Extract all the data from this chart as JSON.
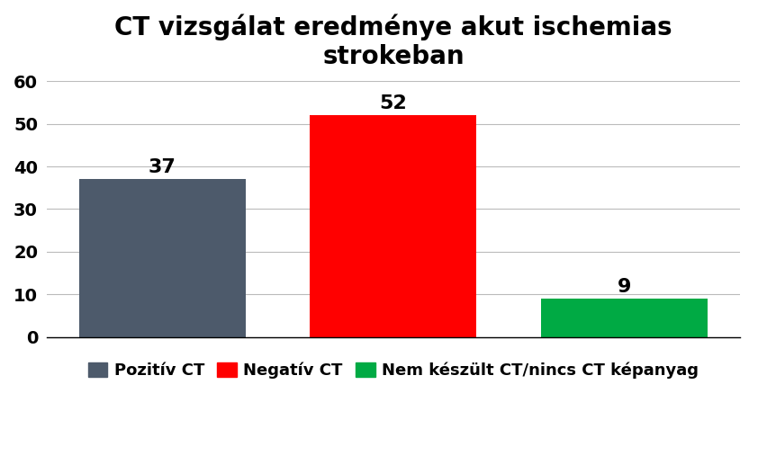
{
  "title": "CT vizsgálat eredménye akut ischemias\nstrokeban",
  "categories": [
    "Pozitív CT",
    "Negatív CT",
    "Nem készült CT/nincs CT képanyag"
  ],
  "values": [
    37,
    52,
    9
  ],
  "bar_colors": [
    "#4d5a6b",
    "#ff0000",
    "#00aa44"
  ],
  "bar_positions": [
    1,
    2,
    3
  ],
  "ylim": [
    0,
    60
  ],
  "yticks": [
    0,
    10,
    20,
    30,
    40,
    50,
    60
  ],
  "title_fontsize": 20,
  "tick_fontsize": 14,
  "legend_fontsize": 13,
  "value_label_fontsize": 16,
  "background_color": "#ffffff",
  "bar_width": 0.72
}
